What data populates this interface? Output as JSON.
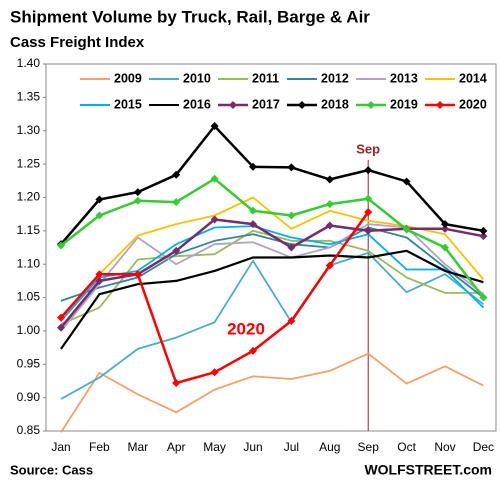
{
  "chart_data": {
    "type": "line",
    "title": "Shipment Volume by Truck, Rail, Barge & Air",
    "subtitle": "Cass Freight Index",
    "categories": [
      "Jan",
      "Feb",
      "Mar",
      "Apr",
      "May",
      "Jun",
      "Jul",
      "Aug",
      "Sep",
      "Oct",
      "Nov",
      "Dec"
    ],
    "series": [
      {
        "name": "2009",
        "color": "#f4a06a",
        "markers": false,
        "values": [
          0.848,
          0.937,
          0.905,
          0.878,
          0.912,
          0.932,
          0.928,
          0.94,
          0.966,
          0.921,
          0.947,
          0.918
        ]
      },
      {
        "name": "2010",
        "color": "#4bacc6",
        "markers": false,
        "values": [
          0.898,
          0.93,
          0.973,
          0.99,
          1.013,
          1.105,
          1.013,
          1.098,
          1.117,
          1.058,
          1.085,
          1.04
        ]
      },
      {
        "name": "2011",
        "color": "#9bbb59",
        "markers": false,
        "values": [
          1.01,
          1.035,
          1.107,
          1.112,
          1.115,
          1.15,
          1.135,
          1.135,
          1.12,
          1.08,
          1.057,
          1.057
        ]
      },
      {
        "name": "2012",
        "color": "#31859c",
        "markers": false,
        "values": [
          1.045,
          1.065,
          1.08,
          1.115,
          1.135,
          1.145,
          1.13,
          1.125,
          1.155,
          1.14,
          1.095,
          1.05
        ]
      },
      {
        "name": "2013",
        "color": "#b3a2c7",
        "markers": false,
        "values": [
          1.0,
          1.07,
          1.14,
          1.1,
          1.13,
          1.133,
          1.11,
          1.125,
          1.16,
          1.155,
          1.1,
          1.055
        ]
      },
      {
        "name": "2014",
        "color": "#ffc000",
        "markers": false,
        "values": [
          1.02,
          1.085,
          1.143,
          1.16,
          1.173,
          1.2,
          1.153,
          1.18,
          1.165,
          1.157,
          1.145,
          1.077
        ]
      },
      {
        "name": "2015",
        "color": "#00b0f0",
        "markers": false,
        "values": [
          1.015,
          1.08,
          1.09,
          1.13,
          1.155,
          1.157,
          1.14,
          1.13,
          1.145,
          1.092,
          1.092,
          1.035
        ]
      },
      {
        "name": "2016",
        "color": "#000000",
        "markers": false,
        "values": [
          0.973,
          1.055,
          1.07,
          1.075,
          1.09,
          1.11,
          1.11,
          1.113,
          1.11,
          1.12,
          1.09,
          1.073
        ]
      },
      {
        "name": "2017",
        "color": "#7a2a6a",
        "markers": true,
        "values": [
          1.005,
          1.075,
          1.085,
          1.12,
          1.167,
          1.16,
          1.125,
          1.158,
          1.15,
          1.153,
          1.153,
          1.142
        ]
      },
      {
        "name": "2018",
        "color": "#000000",
        "markers": true,
        "values": [
          1.13,
          1.197,
          1.208,
          1.234,
          1.307,
          1.246,
          1.245,
          1.227,
          1.241,
          1.224,
          1.16,
          1.15
        ]
      },
      {
        "name": "2019",
        "color": "#33cc33",
        "markers": true,
        "values": [
          1.128,
          1.173,
          1.195,
          1.193,
          1.228,
          1.18,
          1.173,
          1.19,
          1.198,
          1.152,
          1.125,
          1.05
        ]
      },
      {
        "name": "2020",
        "color": "#ff0000",
        "markers": true,
        "values": [
          1.02,
          1.085,
          1.085,
          0.922,
          0.938,
          0.97,
          1.015,
          1.098,
          1.178,
          null,
          null,
          null
        ]
      }
    ],
    "ylim": [
      0.85,
      1.4
    ],
    "yticks": [
      0.85,
      {
        "value": 0.9,
        "label": "0.90"
      },
      0.95,
      {
        "value": 1.0,
        "label": "1.00"
      },
      1.05,
      {
        "value": 1.1,
        "label": "1.10"
      },
      1.15,
      {
        "value": 1.2,
        "label": "1.20"
      },
      1.25,
      {
        "value": 1.3,
        "label": "1.30"
      },
      1.35,
      {
        "value": 1.4,
        "label": "1.40"
      }
    ],
    "grid": false,
    "legend": "top",
    "vline": {
      "label": "Sep",
      "color": "#a0202a"
    },
    "annotation": {
      "text": "2020",
      "color": "#ff0000"
    },
    "source": "Source: Cass",
    "credit": "WOLFSTREET.com"
  }
}
